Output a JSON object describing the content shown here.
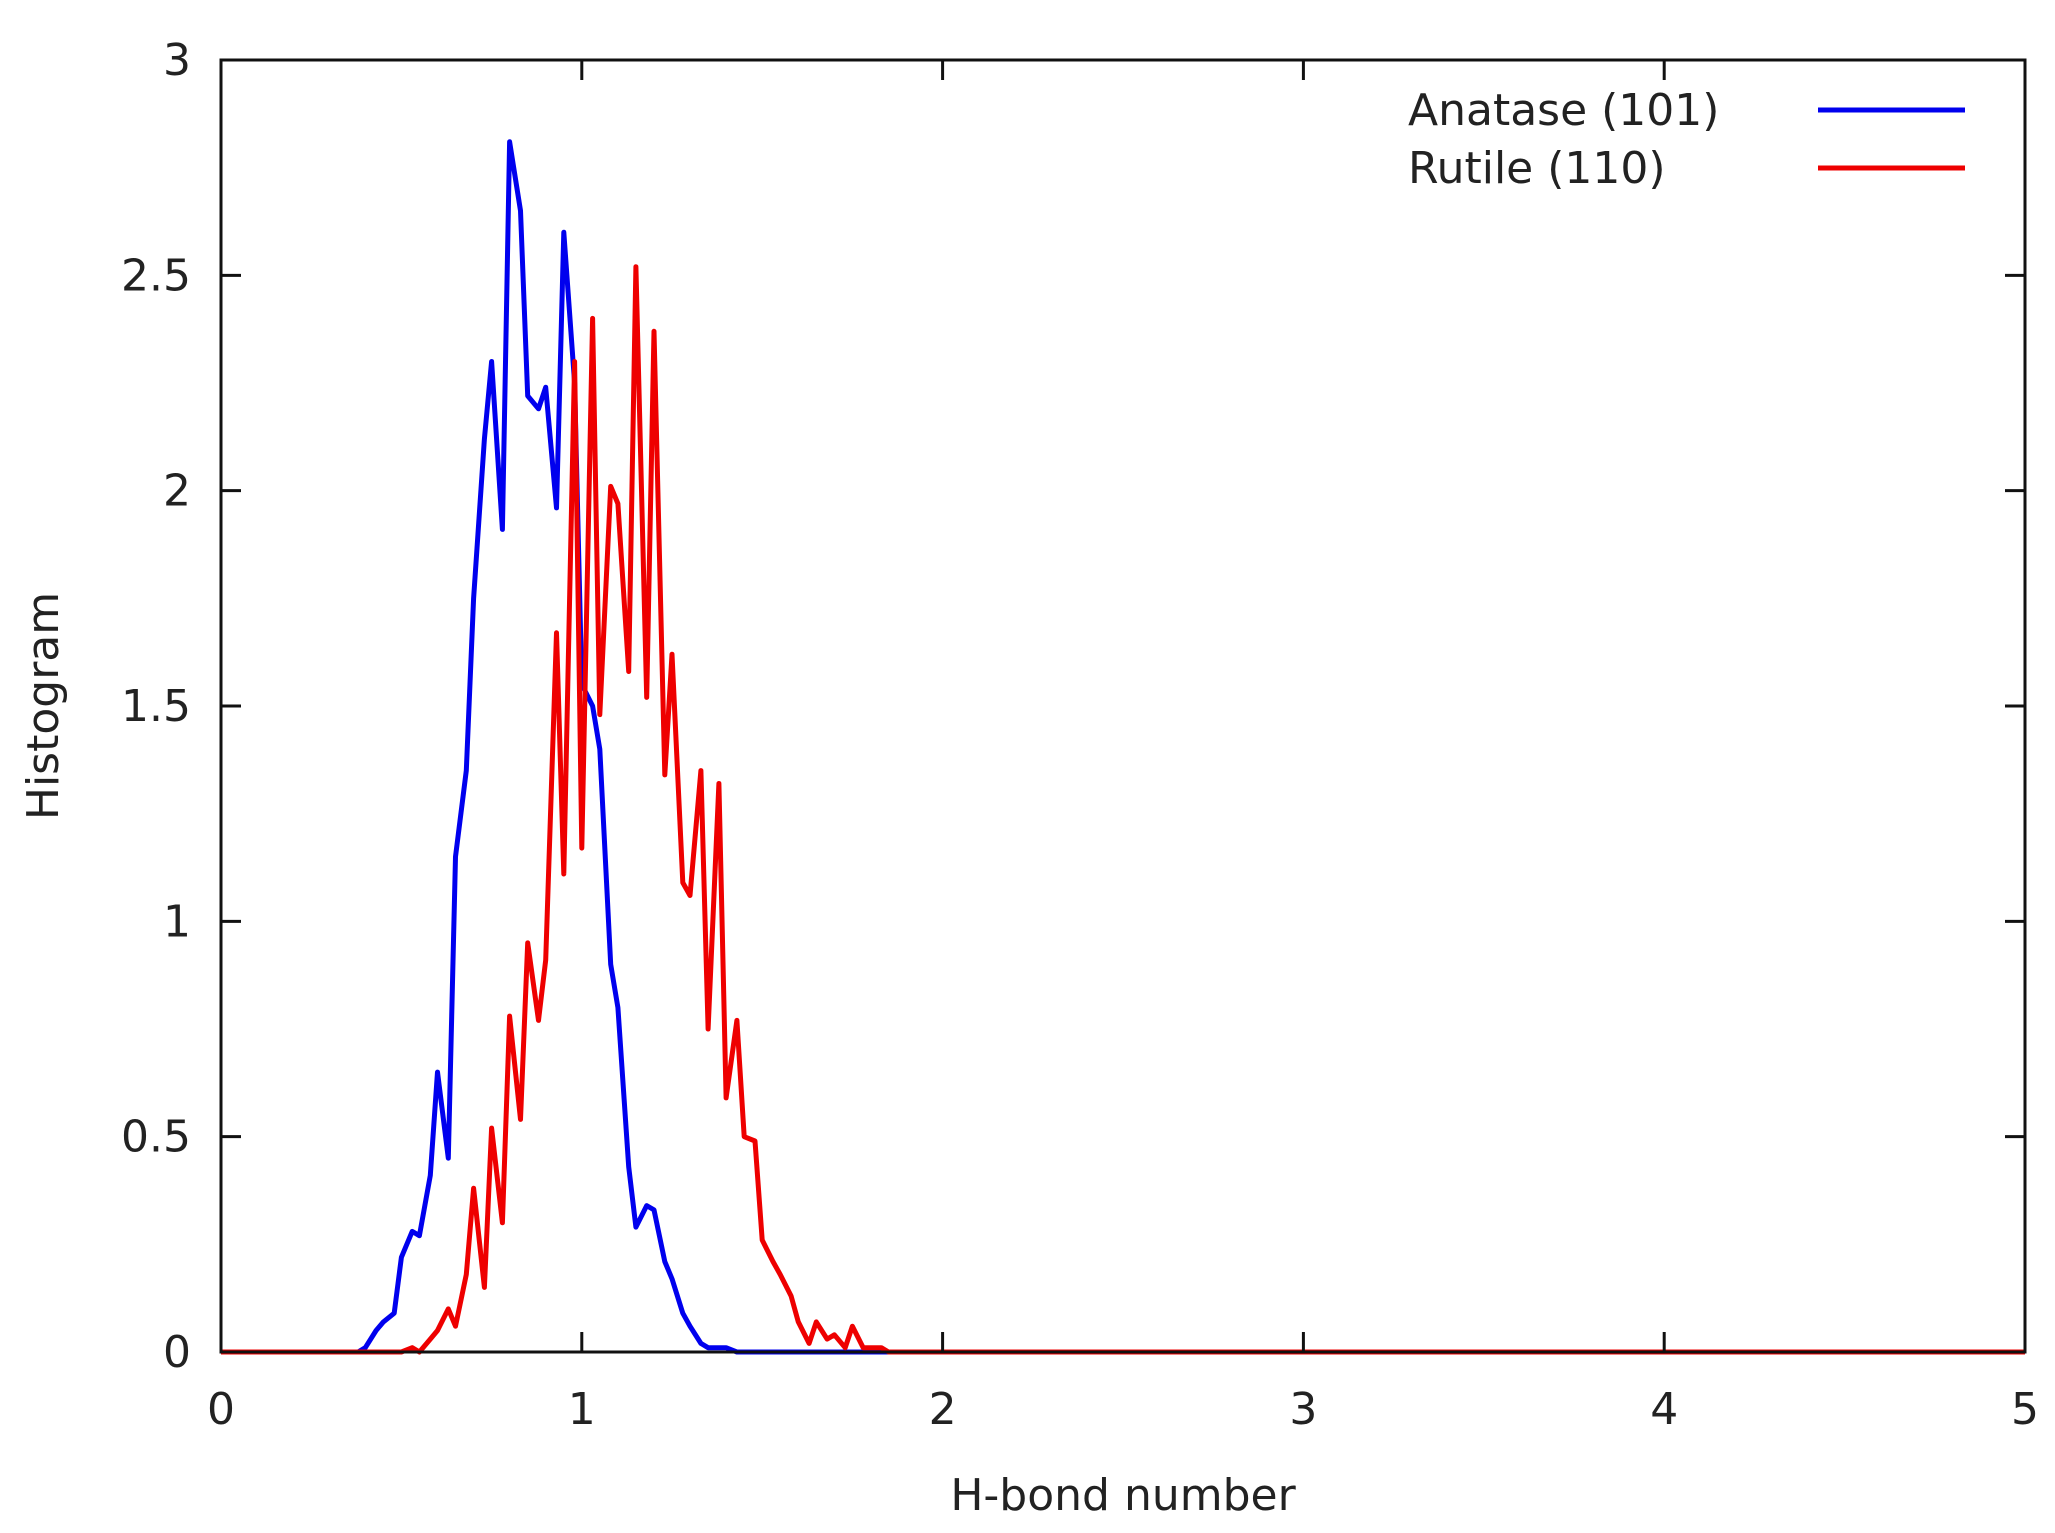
{
  "chart_data": {
    "type": "line",
    "title": "",
    "xlabel": "H-bond number",
    "ylabel": "Histogram",
    "xlim": [
      0,
      5
    ],
    "ylim": [
      0,
      3
    ],
    "xticks": [
      0,
      1,
      2,
      3,
      4,
      5
    ],
    "xtick_labels": [
      "0",
      "1",
      "2",
      "3",
      "4",
      "5"
    ],
    "yticks": [
      0,
      0.5,
      1,
      1.5,
      2,
      2.5,
      3
    ],
    "ytick_labels": [
      "0",
      "0.5",
      "1",
      "1.5",
      "2",
      "2.5",
      "3"
    ],
    "grid": false,
    "legend_position": "top-right",
    "series": [
      {
        "name": "Anatase (101)",
        "color": "#0000ee",
        "x": [
          0,
          0.38,
          0.4,
          0.43,
          0.45,
          0.48,
          0.5,
          0.53,
          0.55,
          0.58,
          0.6,
          0.63,
          0.65,
          0.68,
          0.7,
          0.73,
          0.75,
          0.78,
          0.8,
          0.83,
          0.85,
          0.88,
          0.9,
          0.93,
          0.95,
          0.98,
          1.0,
          1.03,
          1.05,
          1.08,
          1.1,
          1.13,
          1.15,
          1.18,
          1.2,
          1.23,
          1.25,
          1.28,
          1.3,
          1.33,
          1.35,
          1.38,
          1.4,
          1.43,
          1.45,
          1.5,
          2.0,
          5.0
        ],
        "y": [
          0,
          0,
          0.01,
          0.05,
          0.07,
          0.09,
          0.22,
          0.28,
          0.27,
          0.41,
          0.65,
          0.45,
          1.15,
          1.35,
          1.75,
          2.12,
          2.3,
          1.91,
          2.81,
          2.65,
          2.22,
          2.19,
          2.24,
          1.96,
          2.6,
          2.25,
          1.55,
          1.5,
          1.4,
          0.9,
          0.8,
          0.43,
          0.29,
          0.34,
          0.33,
          0.21,
          0.17,
          0.09,
          0.06,
          0.02,
          0.01,
          0.01,
          0.01,
          0.0,
          0.0,
          0.0,
          0.0,
          0.0
        ]
      },
      {
        "name": "Rutile (110)",
        "color": "#ee0000",
        "x": [
          0,
          0.5,
          0.53,
          0.55,
          0.58,
          0.6,
          0.63,
          0.65,
          0.68,
          0.7,
          0.73,
          0.75,
          0.78,
          0.8,
          0.83,
          0.85,
          0.88,
          0.9,
          0.93,
          0.95,
          0.98,
          1.0,
          1.03,
          1.05,
          1.08,
          1.1,
          1.13,
          1.15,
          1.18,
          1.2,
          1.23,
          1.25,
          1.28,
          1.3,
          1.33,
          1.35,
          1.38,
          1.4,
          1.43,
          1.45,
          1.48,
          1.5,
          1.53,
          1.55,
          1.58,
          1.6,
          1.63,
          1.65,
          1.68,
          1.7,
          1.73,
          1.75,
          1.78,
          1.8,
          1.83,
          1.85,
          1.9,
          2.0,
          5.0
        ],
        "y": [
          0,
          0,
          0.01,
          0.0,
          0.03,
          0.05,
          0.1,
          0.06,
          0.18,
          0.38,
          0.15,
          0.52,
          0.3,
          0.78,
          0.54,
          0.95,
          0.77,
          0.91,
          1.67,
          1.11,
          2.3,
          1.17,
          2.4,
          1.48,
          2.01,
          1.97,
          1.58,
          2.52,
          1.52,
          2.37,
          1.34,
          1.62,
          1.09,
          1.06,
          1.35,
          0.75,
          1.32,
          0.59,
          0.77,
          0.5,
          0.49,
          0.26,
          0.21,
          0.18,
          0.13,
          0.07,
          0.02,
          0.07,
          0.03,
          0.04,
          0.01,
          0.06,
          0.01,
          0.01,
          0.01,
          0.0,
          0.0,
          0.0,
          0.0
        ]
      }
    ]
  }
}
